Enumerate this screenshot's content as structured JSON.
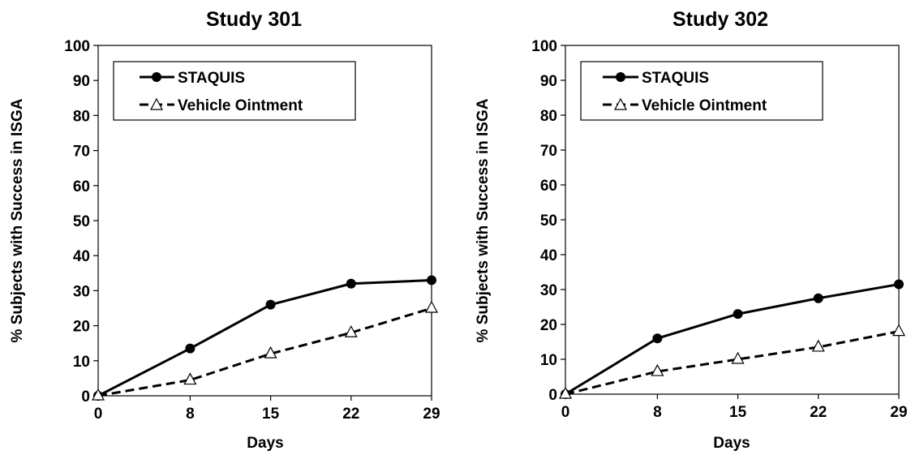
{
  "chart_data": [
    {
      "type": "line",
      "title": "Study 301",
      "xlabel": "Days",
      "ylabel": "% Subjects with Success in ISGA",
      "x": [
        0,
        8,
        15,
        22,
        29
      ],
      "xlim": [
        0,
        29
      ],
      "ylim": [
        0,
        100
      ],
      "yticks": [
        0,
        10,
        20,
        30,
        40,
        50,
        60,
        70,
        80,
        90,
        100
      ],
      "grid": false,
      "legend_position": "top-left",
      "series": [
        {
          "name": "STAQUIS",
          "values": [
            0,
            13.5,
            26,
            32,
            33
          ],
          "style": "solid",
          "marker": "filled-circle",
          "color": "#000000"
        },
        {
          "name": "Vehicle Ointment",
          "values": [
            0,
            4.5,
            12,
            18,
            25
          ],
          "style": "dashed",
          "marker": "open-triangle",
          "color": "#000000"
        }
      ]
    },
    {
      "type": "line",
      "title": "Study 302",
      "xlabel": "Days",
      "ylabel": "% Subjects with Success in ISGA",
      "x": [
        0,
        8,
        15,
        22,
        29
      ],
      "xlim": [
        0,
        29
      ],
      "ylim": [
        0,
        100
      ],
      "yticks": [
        0,
        10,
        20,
        30,
        40,
        50,
        60,
        70,
        80,
        90,
        100
      ],
      "grid": false,
      "legend_position": "top-left",
      "series": [
        {
          "name": "STAQUIS",
          "values": [
            0,
            16,
            23,
            27.5,
            31.5
          ],
          "style": "solid",
          "marker": "filled-circle",
          "color": "#000000"
        },
        {
          "name": "Vehicle Ointment",
          "values": [
            0,
            6.5,
            10,
            13.5,
            18
          ],
          "style": "dashed",
          "marker": "open-triangle",
          "color": "#000000"
        }
      ]
    }
  ]
}
